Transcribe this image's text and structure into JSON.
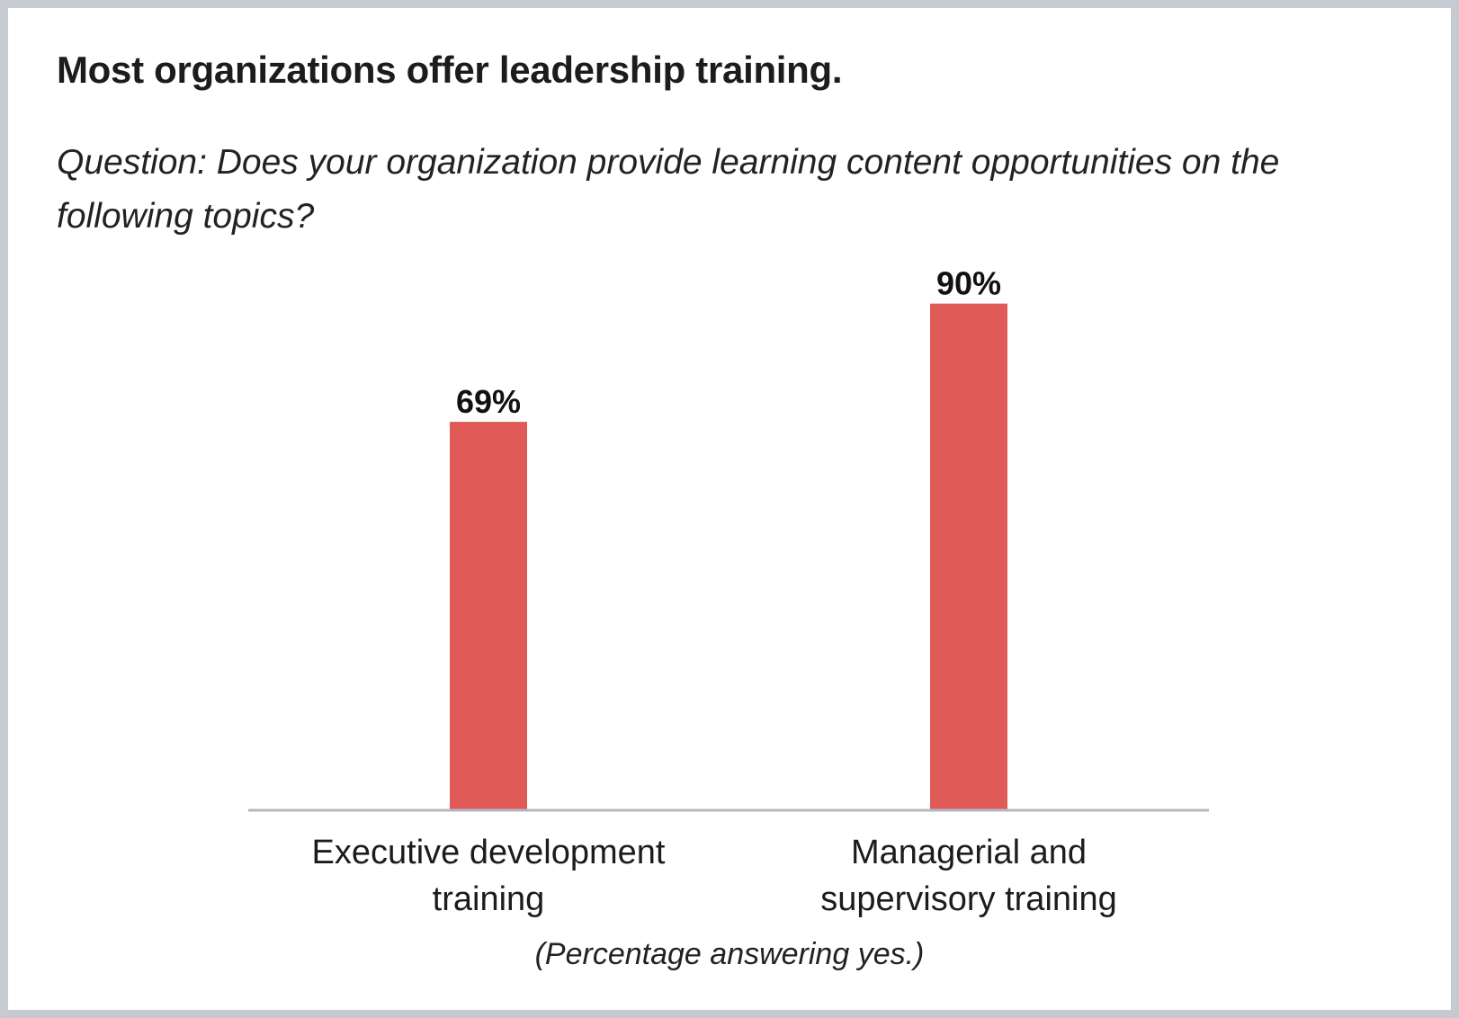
{
  "chart_data": {
    "type": "bar",
    "title": "Most organizations offer leadership training.",
    "subtitle": "Question: Does your organization provide learning content opportunities on the following topics?",
    "note": "(Percentage answering yes.)",
    "categories": [
      [
        "Executive development",
        "training"
      ],
      [
        "Managerial and",
        "supervisory training"
      ]
    ],
    "values": [
      69,
      90
    ],
    "data_labels": [
      "69%",
      "90%"
    ],
    "ylim": [
      0,
      100
    ],
    "grid": false,
    "bar_color": "#e05a57",
    "axis_color": "#b5b9c2"
  }
}
